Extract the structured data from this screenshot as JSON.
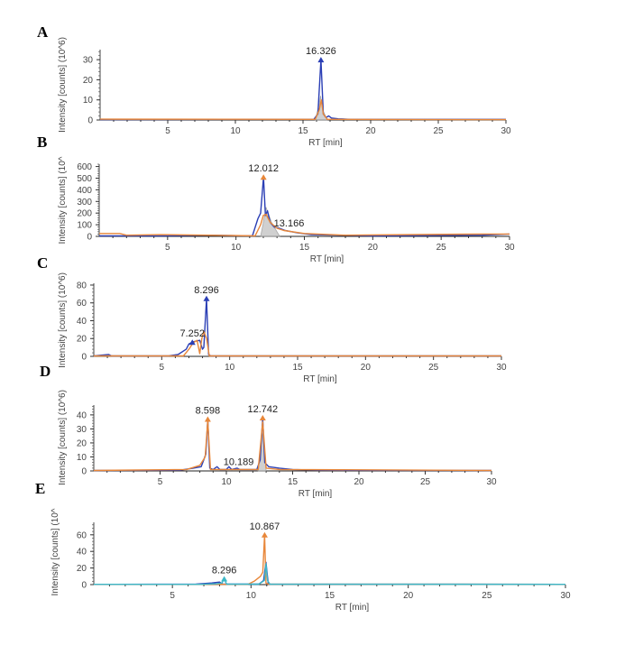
{
  "chart_data": [
    {
      "panel": "A",
      "type": "line",
      "title": "",
      "xlabel": "RT [min]",
      "ylabel": "Intensity [counts] (10^6)",
      "xlim": [
        0,
        30
      ],
      "ylim": [
        0,
        35
      ],
      "xticks": [
        5,
        10,
        15,
        20,
        25,
        30
      ],
      "yticks": [
        0,
        10,
        20,
        30
      ],
      "grid": false,
      "series": [
        {
          "name": "trace-blue",
          "color": "#2b3fb5",
          "x": [
            0,
            10,
            15.8,
            16.1,
            16.326,
            16.5,
            16.7,
            16.9,
            17.1,
            17.6,
            18.5,
            30
          ],
          "y": [
            0.2,
            0.3,
            0.3,
            3,
            30,
            3,
            1.2,
            2,
            1,
            0.6,
            0.3,
            0.3
          ]
        },
        {
          "name": "trace-orange",
          "color": "#e8873a",
          "x": [
            0,
            15.9,
            16.2,
            16.35,
            16.5,
            16.8,
            30
          ],
          "y": [
            0.4,
            0.3,
            5,
            10,
            3,
            0.3,
            0.2
          ]
        },
        {
          "name": "trace-gray",
          "color": "#999999",
          "fill": true,
          "x": [
            15.9,
            16.2,
            16.3,
            16.45,
            16.8
          ],
          "y": [
            0,
            8,
            12,
            5,
            0
          ]
        }
      ],
      "annotations": [
        {
          "label": "16.326",
          "x": 16.326,
          "y": 30,
          "marker_color": "#2b3fb5"
        }
      ]
    },
    {
      "panel": "B",
      "type": "line",
      "title": "",
      "xlabel": "RT [min]",
      "ylabel": "Intensity [counts] (10^",
      "xlim": [
        0,
        30
      ],
      "ylim": [
        0,
        620
      ],
      "xticks": [
        5,
        10,
        15,
        20,
        25,
        30
      ],
      "yticks": [
        0,
        100,
        200,
        300,
        400,
        500,
        600
      ],
      "grid": false,
      "series": [
        {
          "name": "trace-blue",
          "color": "#2b3fb5",
          "x": [
            0,
            4.5,
            8,
            11.2,
            11.6,
            11.8,
            12.012,
            12.15,
            12.3,
            12.5,
            12.8,
            13.166,
            13.6,
            14.5,
            15.5,
            20,
            28,
            30
          ],
          "y": [
            5,
            5,
            10,
            5,
            150,
            200,
            510,
            180,
            220,
            120,
            80,
            70,
            50,
            30,
            15,
            5,
            10,
            20
          ]
        },
        {
          "name": "trace-orange",
          "color": "#e8873a",
          "x": [
            0,
            1.5,
            2,
            4.5,
            8,
            11.4,
            11.8,
            12.0,
            12.2,
            12.5,
            13.0,
            13.5,
            15,
            18,
            28,
            30
          ],
          "y": [
            25,
            25,
            10,
            15,
            10,
            5,
            100,
            180,
            190,
            120,
            70,
            50,
            25,
            10,
            20,
            20
          ]
        },
        {
          "name": "trace-gray",
          "color": "#999999",
          "fill": true,
          "x": [
            11.8,
            12.1,
            12.2,
            12.35,
            12.6,
            12.9,
            13.2
          ],
          "y": [
            0,
            180,
            250,
            200,
            120,
            60,
            0
          ]
        }
      ],
      "annotations": [
        {
          "label": "12.012",
          "x": 12.012,
          "y": 510,
          "marker_color": "#e8873a"
        },
        {
          "label": "13.166",
          "x": 13.166,
          "y": 70,
          "marker_color": ""
        }
      ]
    },
    {
      "panel": "C",
      "type": "line",
      "title": "",
      "xlabel": "RT [min]",
      "ylabel": "Intensity [counts] (10^6)",
      "xlim": [
        0,
        30
      ],
      "ylim": [
        0,
        82
      ],
      "xticks": [
        5,
        10,
        15,
        20,
        25,
        30
      ],
      "yticks": [
        0,
        20,
        40,
        60,
        80
      ],
      "grid": false,
      "series": [
        {
          "name": "trace-blue",
          "color": "#2b3fb5",
          "x": [
            0,
            1.1,
            1.3,
            5.5,
            6.2,
            6.8,
            7.0,
            7.252,
            7.5,
            7.8,
            8.0,
            8.1,
            8.296,
            8.45,
            8.6,
            12,
            30
          ],
          "y": [
            0.5,
            2,
            0.5,
            0.5,
            2,
            8,
            14,
            16,
            17,
            18,
            8,
            10,
            65,
            2,
            0.5,
            0.5,
            0.5
          ]
        },
        {
          "name": "trace-orange",
          "color": "#e8873a",
          "x": [
            0,
            6.6,
            7.0,
            7.3,
            7.6,
            7.8,
            7.95,
            8.1,
            8.3,
            8.5,
            30
          ],
          "y": [
            0.5,
            0.5,
            8,
            15,
            18,
            3,
            20,
            28,
            20,
            0.5,
            0.5
          ]
        }
      ],
      "annotations": [
        {
          "label": "7.252",
          "x": 7.252,
          "y": 16,
          "marker_color": "#2b3fb5"
        },
        {
          "label": "8.296",
          "x": 8.296,
          "y": 65,
          "marker_color": "#2b3fb5"
        }
      ]
    },
    {
      "panel": "D",
      "type": "line",
      "title": "",
      "xlabel": "RT [min]",
      "ylabel": "Intensity [counts] (10^6)",
      "xlim": [
        0,
        30
      ],
      "ylim": [
        0,
        47
      ],
      "xticks": [
        5,
        10,
        15,
        20,
        25,
        30
      ],
      "yticks": [
        0,
        10,
        20,
        30,
        40
      ],
      "grid": false,
      "series": [
        {
          "name": "trace-blue",
          "color": "#2b3fb5",
          "x": [
            0,
            6.5,
            7.5,
            8.1,
            8.3,
            8.45,
            8.598,
            8.75,
            9.0,
            9.3,
            9.5,
            10.0,
            10.189,
            10.4,
            10.8,
            11,
            12.3,
            12.55,
            12.742,
            12.9,
            13.2,
            14,
            15,
            17,
            30
          ],
          "y": [
            0.3,
            0.5,
            2,
            3,
            8,
            12,
            37,
            2,
            1,
            3,
            1,
            1,
            3,
            1,
            2,
            1,
            1,
            8,
            38,
            6,
            3,
            2,
            1,
            0.5,
            0.3
          ]
        },
        {
          "name": "trace-orange",
          "color": "#e8873a",
          "x": [
            0,
            7,
            8.0,
            8.4,
            8.598,
            8.8,
            12.4,
            12.742,
            13.0,
            14,
            30
          ],
          "y": [
            0.3,
            1,
            4,
            10,
            36,
            1,
            1,
            35,
            2,
            1,
            0.3
          ]
        },
        {
          "name": "trace-gray",
          "color": "#999999",
          "fill": true,
          "x": [
            12.4,
            12.7,
            12.8,
            13.0
          ],
          "y": [
            0,
            28,
            20,
            0
          ]
        }
      ],
      "annotations": [
        {
          "label": "8.598",
          "x": 8.598,
          "y": 37,
          "marker_color": "#e8873a"
        },
        {
          "label": "10.189",
          "x": 10.189,
          "y": 3,
          "marker_color": ""
        },
        {
          "label": "12.742",
          "x": 12.742,
          "y": 38,
          "marker_color": "#e8873a"
        }
      ]
    },
    {
      "panel": "E",
      "type": "line",
      "title": "",
      "xlabel": "RT [min]",
      "ylabel": "Intensity [counts] (10^",
      "xlim": [
        0,
        30
      ],
      "ylim": [
        0,
        75
      ],
      "xticks": [
        5,
        10,
        15,
        20,
        25,
        30
      ],
      "yticks": [
        0,
        20,
        40,
        60
      ],
      "grid": false,
      "series": [
        {
          "name": "trace-blue",
          "color": "#2b3fb5",
          "x": [
            0,
            6.5,
            7.5,
            8.0,
            8.2,
            10.5,
            10.8,
            10.95,
            11.1,
            30
          ],
          "y": [
            0.3,
            0.5,
            2,
            3,
            0.5,
            0.5,
            5,
            27,
            0.5,
            0.3
          ]
        },
        {
          "name": "trace-orange",
          "color": "#e8873a",
          "x": [
            0,
            9.8,
            10.2,
            10.6,
            10.75,
            10.867,
            10.95,
            11.1,
            30
          ],
          "y": [
            0.3,
            0.3,
            4,
            10,
            15,
            60,
            2,
            0.5,
            0.3
          ]
        },
        {
          "name": "trace-teal",
          "color": "#3db8c8",
          "x": [
            0,
            6.8,
            7.8,
            8.15,
            8.296,
            8.45,
            10.5,
            10.85,
            10.95,
            11.05,
            11.2,
            30
          ],
          "y": [
            0.3,
            0.3,
            1,
            2,
            7,
            0.5,
            0.5,
            5,
            25,
            5,
            0.5,
            0.3
          ]
        }
      ],
      "annotations": [
        {
          "label": "8.296",
          "x": 8.296,
          "y": 7,
          "marker_color": "#3db8c8"
        },
        {
          "label": "10.867",
          "x": 10.867,
          "y": 60,
          "marker_color": "#e8873a"
        }
      ]
    }
  ]
}
